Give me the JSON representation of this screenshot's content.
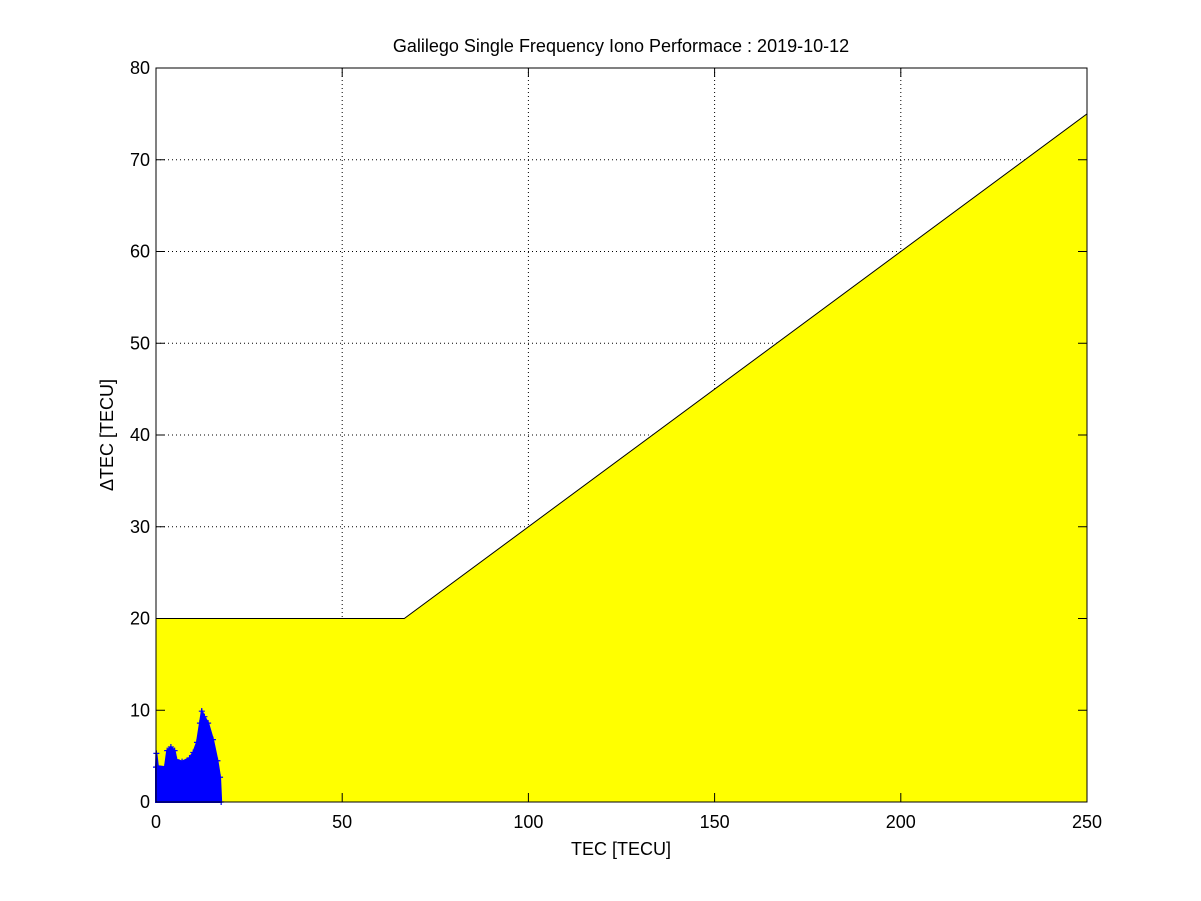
{
  "chart_data": {
    "type": "area",
    "title": "Galilego Single Frequency Iono Performace : 2019-10-12",
    "xlabel": "TEC [TECU]",
    "ylabel": "ΔTEC [TECU]",
    "xlim": [
      0,
      250
    ],
    "ylim": [
      0,
      80
    ],
    "xticks": [
      0,
      50,
      100,
      150,
      200,
      250
    ],
    "yticks": [
      0,
      10,
      20,
      30,
      40,
      50,
      60,
      70,
      80
    ],
    "grid": true,
    "grid_style": "dotted",
    "threshold_region": {
      "color": "#ffff00",
      "x": [
        0,
        0,
        66.67,
        250,
        250
      ],
      "y": [
        0,
        20,
        20,
        75,
        0
      ]
    },
    "scatter": {
      "color": "#0000ff",
      "marker": "+",
      "envelope_x": [
        0,
        0.1,
        0.5,
        2.4,
        3.0,
        4.0,
        5.0,
        5.5,
        7.0,
        9.0,
        10.0,
        11.0,
        11.8,
        12.3,
        13.0,
        14.0,
        15.3,
        16.5,
        17.2,
        17.5
      ],
      "envelope_ymax": [
        3.8,
        5.3,
        3.9,
        3.8,
        5.6,
        6.0,
        5.6,
        4.6,
        4.4,
        4.8,
        5.4,
        6.5,
        8.6,
        9.9,
        9.3,
        8.6,
        6.8,
        4.5,
        2.7,
        0
      ]
    }
  }
}
